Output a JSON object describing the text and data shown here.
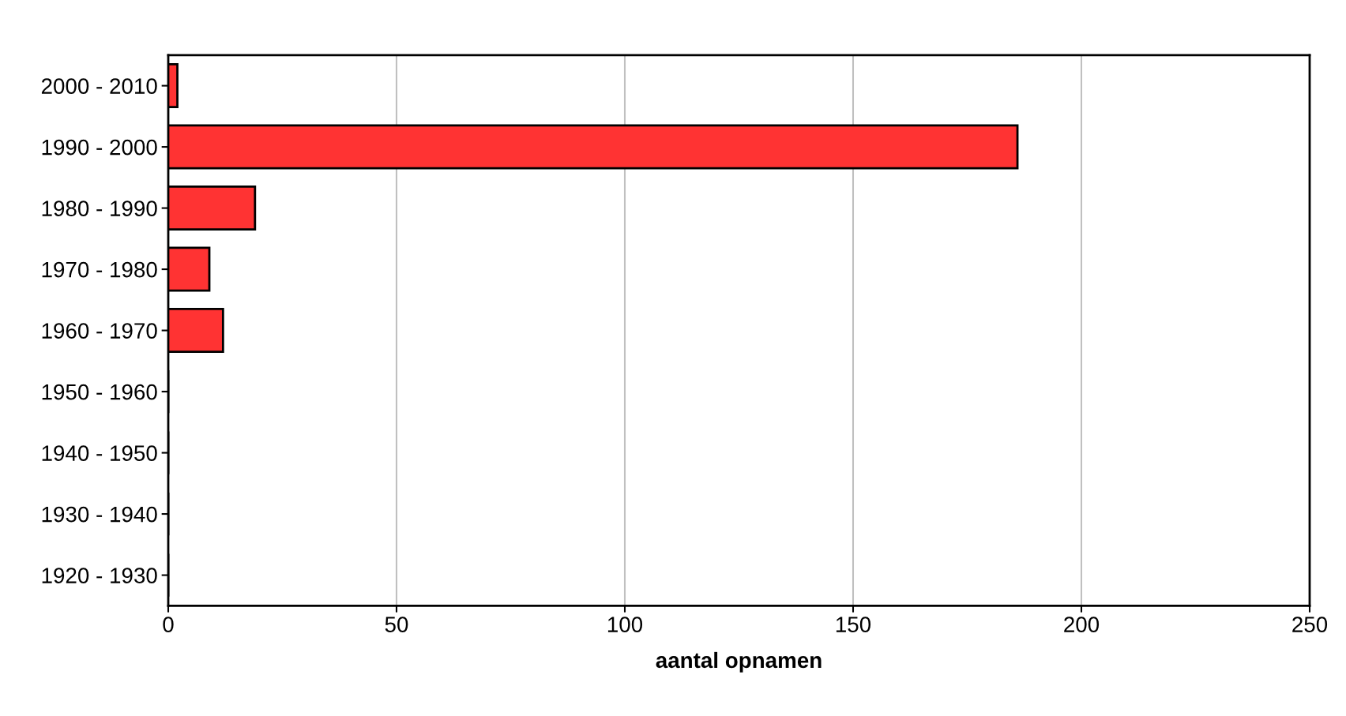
{
  "chart_data": {
    "type": "bar",
    "orientation": "horizontal",
    "xlabel": "aantal opnamen",
    "categories": [
      "2000 - 2010",
      "1990 - 2000",
      "1980 - 1990",
      "1970 - 1980",
      "1960 - 1970",
      "1950 - 1960",
      "1940 - 1950",
      "1930 - 1940",
      "1920 - 1930"
    ],
    "values": [
      2,
      186,
      19,
      9,
      12,
      0,
      0,
      0,
      0
    ],
    "color": "#ff3333",
    "xlim": [
      0,
      250
    ],
    "xticks": [
      0,
      50,
      100,
      150,
      200,
      250
    ],
    "grid": "x",
    "legend": false
  }
}
